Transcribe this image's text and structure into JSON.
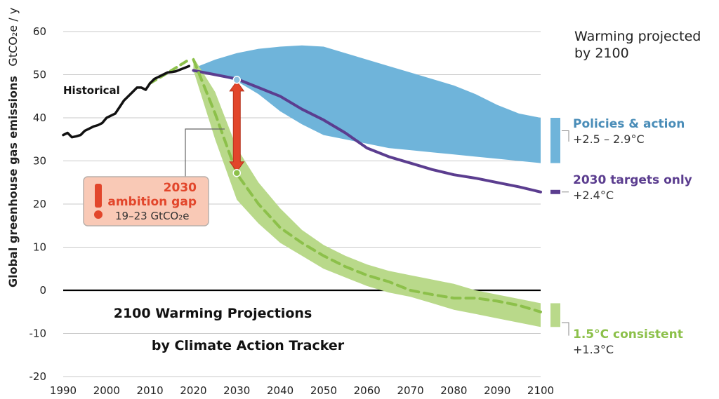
{
  "chart_data": {
    "type": "area",
    "ylabel": "Global greenhouse gas emissions",
    "ylabel_unit": "GtCO₂e / y",
    "xlim": [
      1990,
      2100
    ],
    "ylim": [
      -20,
      60
    ],
    "x_ticks": [
      "1990",
      "2000",
      "2010",
      "2020",
      "2030",
      "2040",
      "2050",
      "2060",
      "2070",
      "2080",
      "2090",
      "2100"
    ],
    "y_ticks": [
      "60",
      "50",
      "40",
      "30",
      "20",
      "10",
      "0",
      "-10",
      "-20"
    ],
    "grid": true,
    "titles": {
      "line1": "2100 Warming Projections",
      "line2": "by Climate Action Tracker"
    },
    "legend_header": {
      "line1": "Warming projected",
      "line2": "by 2100"
    },
    "colors": {
      "historical": "#111111",
      "policies": "#6fb4da",
      "targets": "#5b3d8f",
      "consistent": "#b9d98a",
      "consistent_line": "#8cc04a",
      "gap": "#e2462b",
      "gap_box": "#f9c9b6"
    },
    "series": [
      {
        "name": "Historical",
        "label": "Historical",
        "x": [
          1990,
          1991,
          1992,
          1993,
          1994,
          1995,
          1996,
          1997,
          1998,
          1999,
          2000,
          2001,
          2002,
          2003,
          2004,
          2005,
          2006,
          2007,
          2008,
          2009,
          2010,
          2011,
          2012,
          2013,
          2014,
          2015,
          2016,
          2017,
          2018,
          2019
        ],
        "y": [
          36.0,
          36.5,
          35.5,
          35.7,
          36.0,
          37.0,
          37.5,
          38.0,
          38.3,
          38.8,
          40.0,
          40.5,
          41.0,
          42.5,
          44.0,
          45.0,
          46.0,
          47.0,
          47.0,
          46.5,
          48.0,
          49.0,
          49.5,
          50.0,
          50.5,
          50.6,
          50.8,
          51.2,
          51.6,
          52.0
        ]
      },
      {
        "name": "Policies & action",
        "range": "+2.5 – 2.9°C",
        "x": [
          2020,
          2025,
          2030,
          2035,
          2040,
          2045,
          2050,
          2055,
          2060,
          2065,
          2070,
          2075,
          2080,
          2085,
          2090,
          2095,
          2100
        ],
        "upper": [
          51.5,
          53.5,
          55.0,
          56.0,
          56.5,
          56.8,
          56.5,
          55.0,
          53.5,
          52.0,
          50.5,
          49.0,
          47.5,
          45.5,
          43.0,
          41.0,
          40.0
        ],
        "lower": [
          50.5,
          50.0,
          48.5,
          45.5,
          41.5,
          38.5,
          36.0,
          35.0,
          34.0,
          33.0,
          32.5,
          32.0,
          31.5,
          31.0,
          30.5,
          30.0,
          29.5
        ]
      },
      {
        "name": "2030 targets only",
        "range": "+2.4°C",
        "x": [
          2020,
          2025,
          2030,
          2035,
          2040,
          2045,
          2050,
          2055,
          2060,
          2065,
          2070,
          2075,
          2080,
          2085,
          2090,
          2095,
          2100
        ],
        "y": [
          51.0,
          50.0,
          49.0,
          47.0,
          45.0,
          42.0,
          39.5,
          36.5,
          33.0,
          31.0,
          29.5,
          28.0,
          26.8,
          26.0,
          25.0,
          24.0,
          22.8
        ]
      },
      {
        "name": "1.5°C consistent",
        "range": "+1.3°C",
        "x": [
          2020,
          2025,
          2030,
          2035,
          2040,
          2045,
          2050,
          2055,
          2060,
          2065,
          2070,
          2075,
          2080,
          2085,
          2090,
          2095,
          2100
        ],
        "upper": [
          54.0,
          46.0,
          33.0,
          25.0,
          19.0,
          14.0,
          10.5,
          8.0,
          6.0,
          4.5,
          3.5,
          2.5,
          1.5,
          0.0,
          -1.0,
          -2.0,
          -3.0
        ],
        "lower": [
          51.0,
          35.0,
          21.0,
          15.5,
          11.0,
          8.0,
          5.0,
          3.0,
          1.0,
          -0.5,
          -1.5,
          -3.0,
          -4.5,
          -5.5,
          -6.5,
          -7.5,
          -8.5
        ],
        "median": [
          53.5,
          41.0,
          27.0,
          20.0,
          14.5,
          11.0,
          8.0,
          5.5,
          3.5,
          2.0,
          0.0,
          -1.0,
          -1.8,
          -1.8,
          -2.5,
          -3.5,
          -5.0
        ]
      }
    ],
    "ambition_gap": {
      "title_line1": "2030",
      "title_line2": "ambition gap",
      "range": "19–23  GtCO₂e",
      "year": 2030,
      "top": 48.8,
      "bottom": 27.2
    }
  }
}
